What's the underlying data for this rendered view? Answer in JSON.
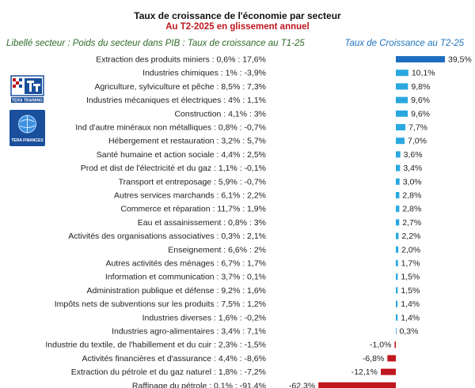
{
  "title": "Taux de croissance de l'économie par secteur",
  "subtitle": "Au T2-2025 en glissement annuel",
  "left_header": "Libellé secteur : Poids du secteur dans PIB : Taux de croissance au T1-25",
  "right_header": "Taux de Croissance au T2-25",
  "logos": [
    {
      "icon": "tera-training-logo",
      "text": "TERA TRAINING"
    },
    {
      "icon": "tera-finances-logo",
      "text": "TERA FINANCES"
    }
  ],
  "colors": {
    "positive": "#29a8e0",
    "top": "#1e6fc2",
    "negative": "#c0161e"
  },
  "chart_data": {
    "type": "bar",
    "orientation": "horizontal",
    "title": "Taux de croissance de l'économie par secteur",
    "subtitle": "Au T2-2025 en glissement annuel",
    "categories": [
      "Extraction des produits miniers : 0,6% : 17,6%",
      "Industries chimiques : 1% : -3,9%",
      "Agriculture, sylviculture et pêche : 8,5% : 7,3%",
      "Industries mécaniques et électriques : 4% : 1,1%",
      "Construction : 4,1% : 3%",
      "Ind d'autre minéraux non métalliques : 0,8% : -0,7%",
      "Hébergement et restauration : 3,2% : 5,7%",
      "Santé humaine et action sociale : 4,4% : 2,5%",
      "Prod et dist de l'électricité et du gaz : 1,1% : -0,1%",
      "Transport et entreposage : 5,9% : -0,7%",
      "Autres services marchands : 6,1% : 2,2%",
      "Commerce et réparation : 11,7% : 1,9%",
      "Eau et assainissement : 0,8% : 3%",
      "Activités des organisations associatives : 0,3% : 2,1%",
      "Enseignement : 6,6% : 2%",
      "Autres activités des ménages : 6,7% : 1,7%",
      "Information et communication : 3,7% : 0,1%",
      "Administration publique et défense : 9,2% : 1,6%",
      "Impôts nets de subventions sur les produits : 7,5% : 1,2%",
      "Industries diverses : 1,6% : -0,2%",
      "Industries agro-alimentaires : 3,4% : 7,1%",
      "Industrie du textile, de l'habillement et du cuir : 2,3% : -1,5%",
      "Activités financières et d'assurance : 4,4% : -8,6%",
      "Extraction du pétrole et du gaz naturel : 1,8% : -7,2%",
      "Raffinage du pétrole : 0,1% : -91,4%"
    ],
    "values": [
      39.5,
      10.1,
      9.8,
      9.6,
      9.6,
      7.7,
      7.0,
      3.6,
      3.4,
      3.0,
      2.8,
      2.8,
      2.7,
      2.2,
      2.0,
      1.7,
      1.5,
      1.5,
      1.4,
      1.4,
      0.3,
      -1.0,
      -6.8,
      -12.1,
      -62.3
    ],
    "value_labels": [
      "39,5%",
      "10,1%",
      "9,8%",
      "9,6%",
      "9,6%",
      "7,7%",
      "7,0%",
      "3,6%",
      "3,4%",
      "3,0%",
      "2,8%",
      "2,8%",
      "2,7%",
      "2,2%",
      "2,0%",
      "1,7%",
      "1,5%",
      "1,5%",
      "1,4%",
      "1,4%",
      "0,3%",
      "-1,0%",
      "-6,8%",
      "-12,1%",
      "-62,3%"
    ],
    "xlabel": "",
    "ylabel": "",
    "grid": false,
    "legend": "none"
  }
}
